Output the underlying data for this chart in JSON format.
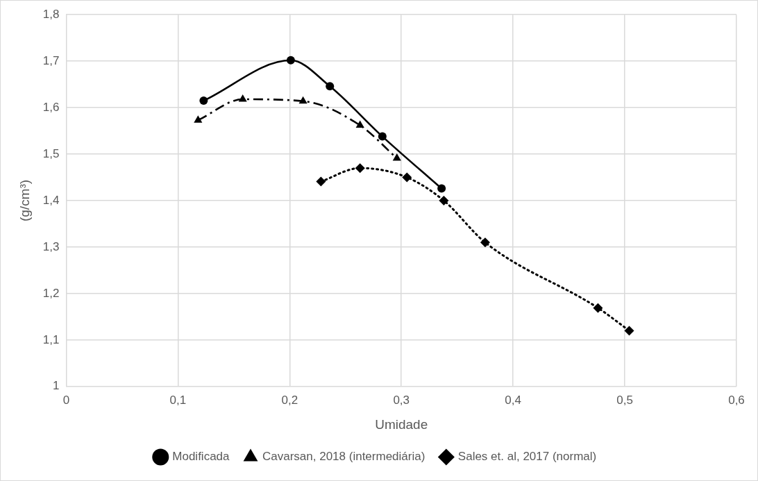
{
  "chart_data": {
    "type": "line",
    "xlabel": "Umidade",
    "ylabel": "(g/cm³)",
    "xlim": [
      0,
      0.6
    ],
    "xticks": [
      0,
      {
        "value": 0.1,
        "label": "0,1"
      },
      {
        "value": 0.2,
        "label": "0,2"
      },
      {
        "value": 0.3,
        "label": "0,3"
      },
      {
        "value": 0.4,
        "label": "0,4"
      },
      {
        "value": 0.5,
        "label": "0,5"
      },
      {
        "value": 0.6,
        "label": "0,6"
      }
    ],
    "ylim": [
      1,
      1.8
    ],
    "yticks": [
      1,
      {
        "value": 1.1,
        "label": "1,1"
      },
      {
        "value": 1.2,
        "label": "1,2"
      },
      {
        "value": 1.3,
        "label": "1,3"
      },
      {
        "value": 1.4,
        "label": "1,4"
      },
      {
        "value": 1.5,
        "label": "1,5"
      },
      {
        "value": 1.6,
        "label": "1,6"
      },
      {
        "value": 1.7,
        "label": "1,7"
      },
      {
        "value": 1.8,
        "label": "1,8"
      }
    ],
    "grid": true,
    "legend": "bottom",
    "series": [
      {
        "name": "Modificada",
        "color": "#000000",
        "marker": "circle",
        "line_style": "solid",
        "x": [
          0.123,
          0.201,
          0.236,
          0.283,
          0.336
        ],
        "values": [
          1.615,
          1.702,
          1.646,
          1.538,
          1.426
        ]
      },
      {
        "name": "Cavarsan, 2018 (intermediária)",
        "color": "#000000",
        "marker": "triangle",
        "line_style": "dashed",
        "x": [
          0.118,
          0.158,
          0.212,
          0.263,
          0.296
        ],
        "values": [
          1.573,
          1.618,
          1.614,
          1.562,
          1.491
        ]
      },
      {
        "name": "Sales et. al, 2017 (normal)",
        "color": "#000000",
        "marker": "diamond",
        "line_style": "dotted",
        "x": [
          0.228,
          0.263,
          0.305,
          0.338,
          0.375,
          0.476,
          0.504
        ],
        "values": [
          1.441,
          1.47,
          1.45,
          1.4,
          1.31,
          1.169,
          1.12
        ]
      }
    ]
  }
}
